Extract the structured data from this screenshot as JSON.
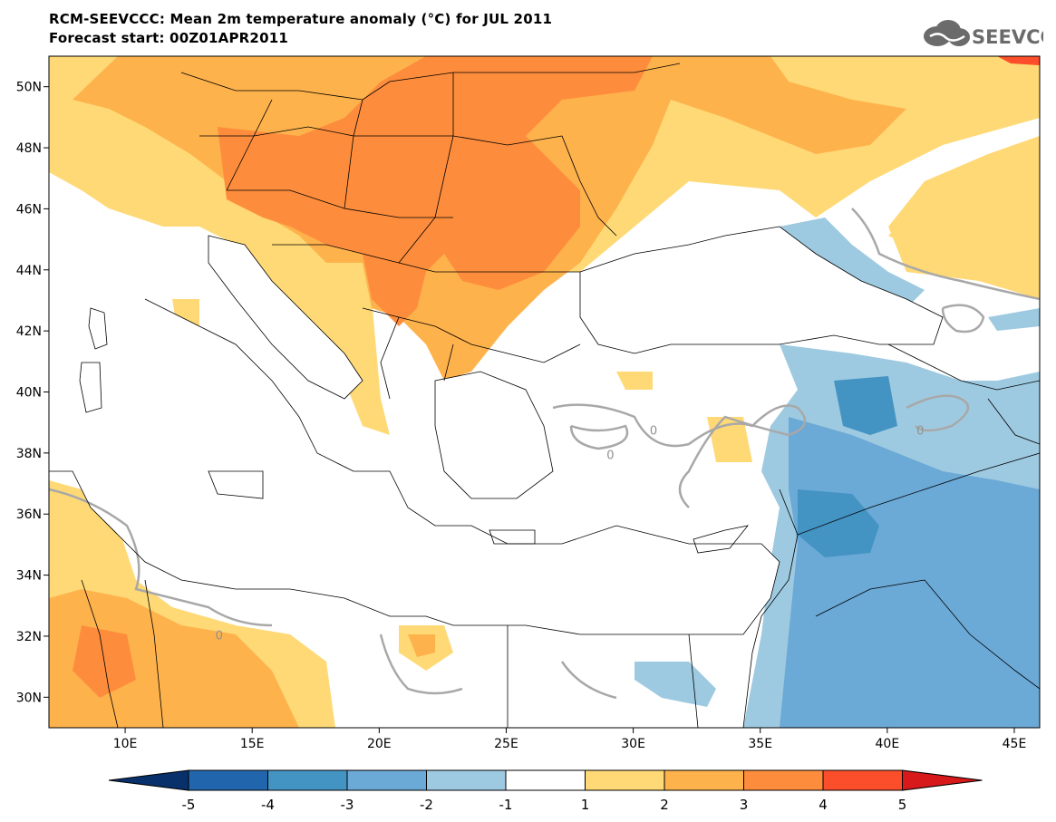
{
  "title": {
    "line1": "RCM-SEEVCCC: Mean 2m temperature anomaly (°C) for JUL 2011",
    "line2": "Forecast start: 00Z01APR2011"
  },
  "logo": {
    "text": "SEEVCCC",
    "icon": "cloud-icon"
  },
  "map": {
    "lon_range": [
      7,
      46
    ],
    "lat_range": [
      29,
      51
    ],
    "lon_ticks": [
      {
        "lon": 10,
        "label": "10E"
      },
      {
        "lon": 15,
        "label": "15E"
      },
      {
        "lon": 20,
        "label": "20E"
      },
      {
        "lon": 25,
        "label": "25E"
      },
      {
        "lon": 30,
        "label": "30E"
      },
      {
        "lon": 35,
        "label": "35E"
      },
      {
        "lon": 40,
        "label": "40E"
      },
      {
        "lon": 45,
        "label": "45E"
      }
    ],
    "lat_ticks": [
      {
        "lat": 30,
        "label": "30N"
      },
      {
        "lat": 32,
        "label": "32N"
      },
      {
        "lat": 34,
        "label": "34N"
      },
      {
        "lat": 36,
        "label": "36N"
      },
      {
        "lat": 38,
        "label": "38N"
      },
      {
        "lat": 40,
        "label": "40N"
      },
      {
        "lat": 42,
        "label": "42N"
      },
      {
        "lat": 44,
        "label": "44N"
      },
      {
        "lat": 46,
        "label": "46N"
      },
      {
        "lat": 48,
        "label": "48N"
      },
      {
        "lat": 50,
        "label": "50N"
      }
    ],
    "contour_labels": [
      {
        "lon": 30.8,
        "lat": 38.6,
        "text": "0"
      },
      {
        "lon": 29.1,
        "lat": 37.8,
        "text": "0"
      },
      {
        "lon": 41.3,
        "lat": 38.6,
        "text": "0"
      },
      {
        "lon": 13.7,
        "lat": 31.9,
        "text": "0"
      }
    ]
  },
  "colorbar": {
    "labels": [
      "-5",
      "-4",
      "-3",
      "-2",
      "-1",
      "1",
      "2",
      "3",
      "4",
      "5"
    ],
    "colors": [
      "#08306b",
      "#2166ac",
      "#4393c3",
      "#6ba9d6",
      "#9ecae1",
      "#ffffff",
      "#fed976",
      "#feb24c",
      "#fd8d3c",
      "#fc4e2a",
      "#d7191c"
    ]
  }
}
